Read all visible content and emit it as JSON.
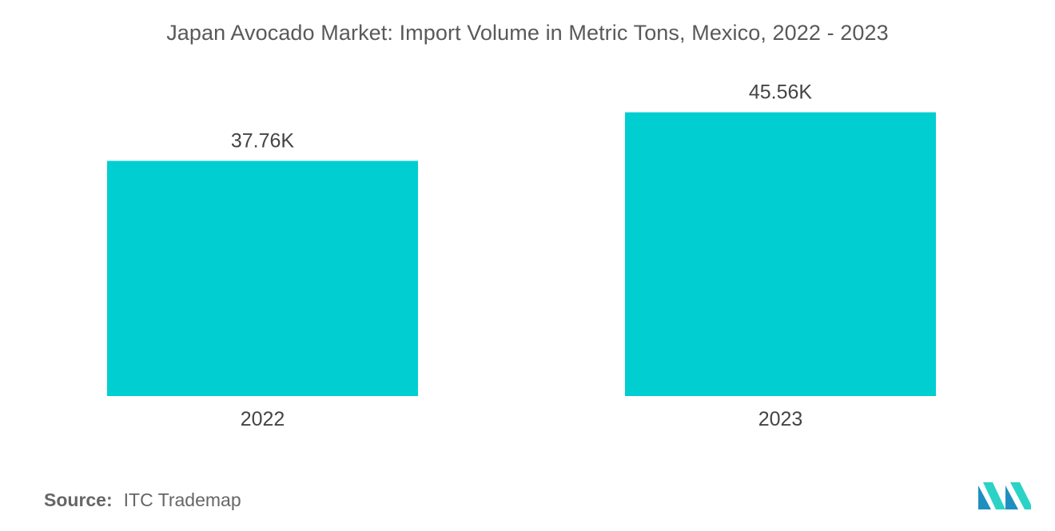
{
  "chart_data": {
    "type": "bar",
    "title": "Japan Avocado Market: Import Volume in Metric Tons, Mexico, 2022 - 2023",
    "categories": [
      "2022",
      "2023"
    ],
    "values": [
      37.76,
      45.56
    ],
    "value_labels": [
      "37.76K",
      "45.56K"
    ],
    "unit_multiplier": "K",
    "ylim": [
      0,
      50
    ],
    "grid": false,
    "legend": "none",
    "bar_color": "#00CED1"
  },
  "source": {
    "label": "Source:",
    "text": "ITC Trademap"
  },
  "logo": {
    "icon": "mordor-intelligence-logo-icon",
    "colors": [
      "#1f8fbf",
      "#2bd3c6"
    ]
  }
}
